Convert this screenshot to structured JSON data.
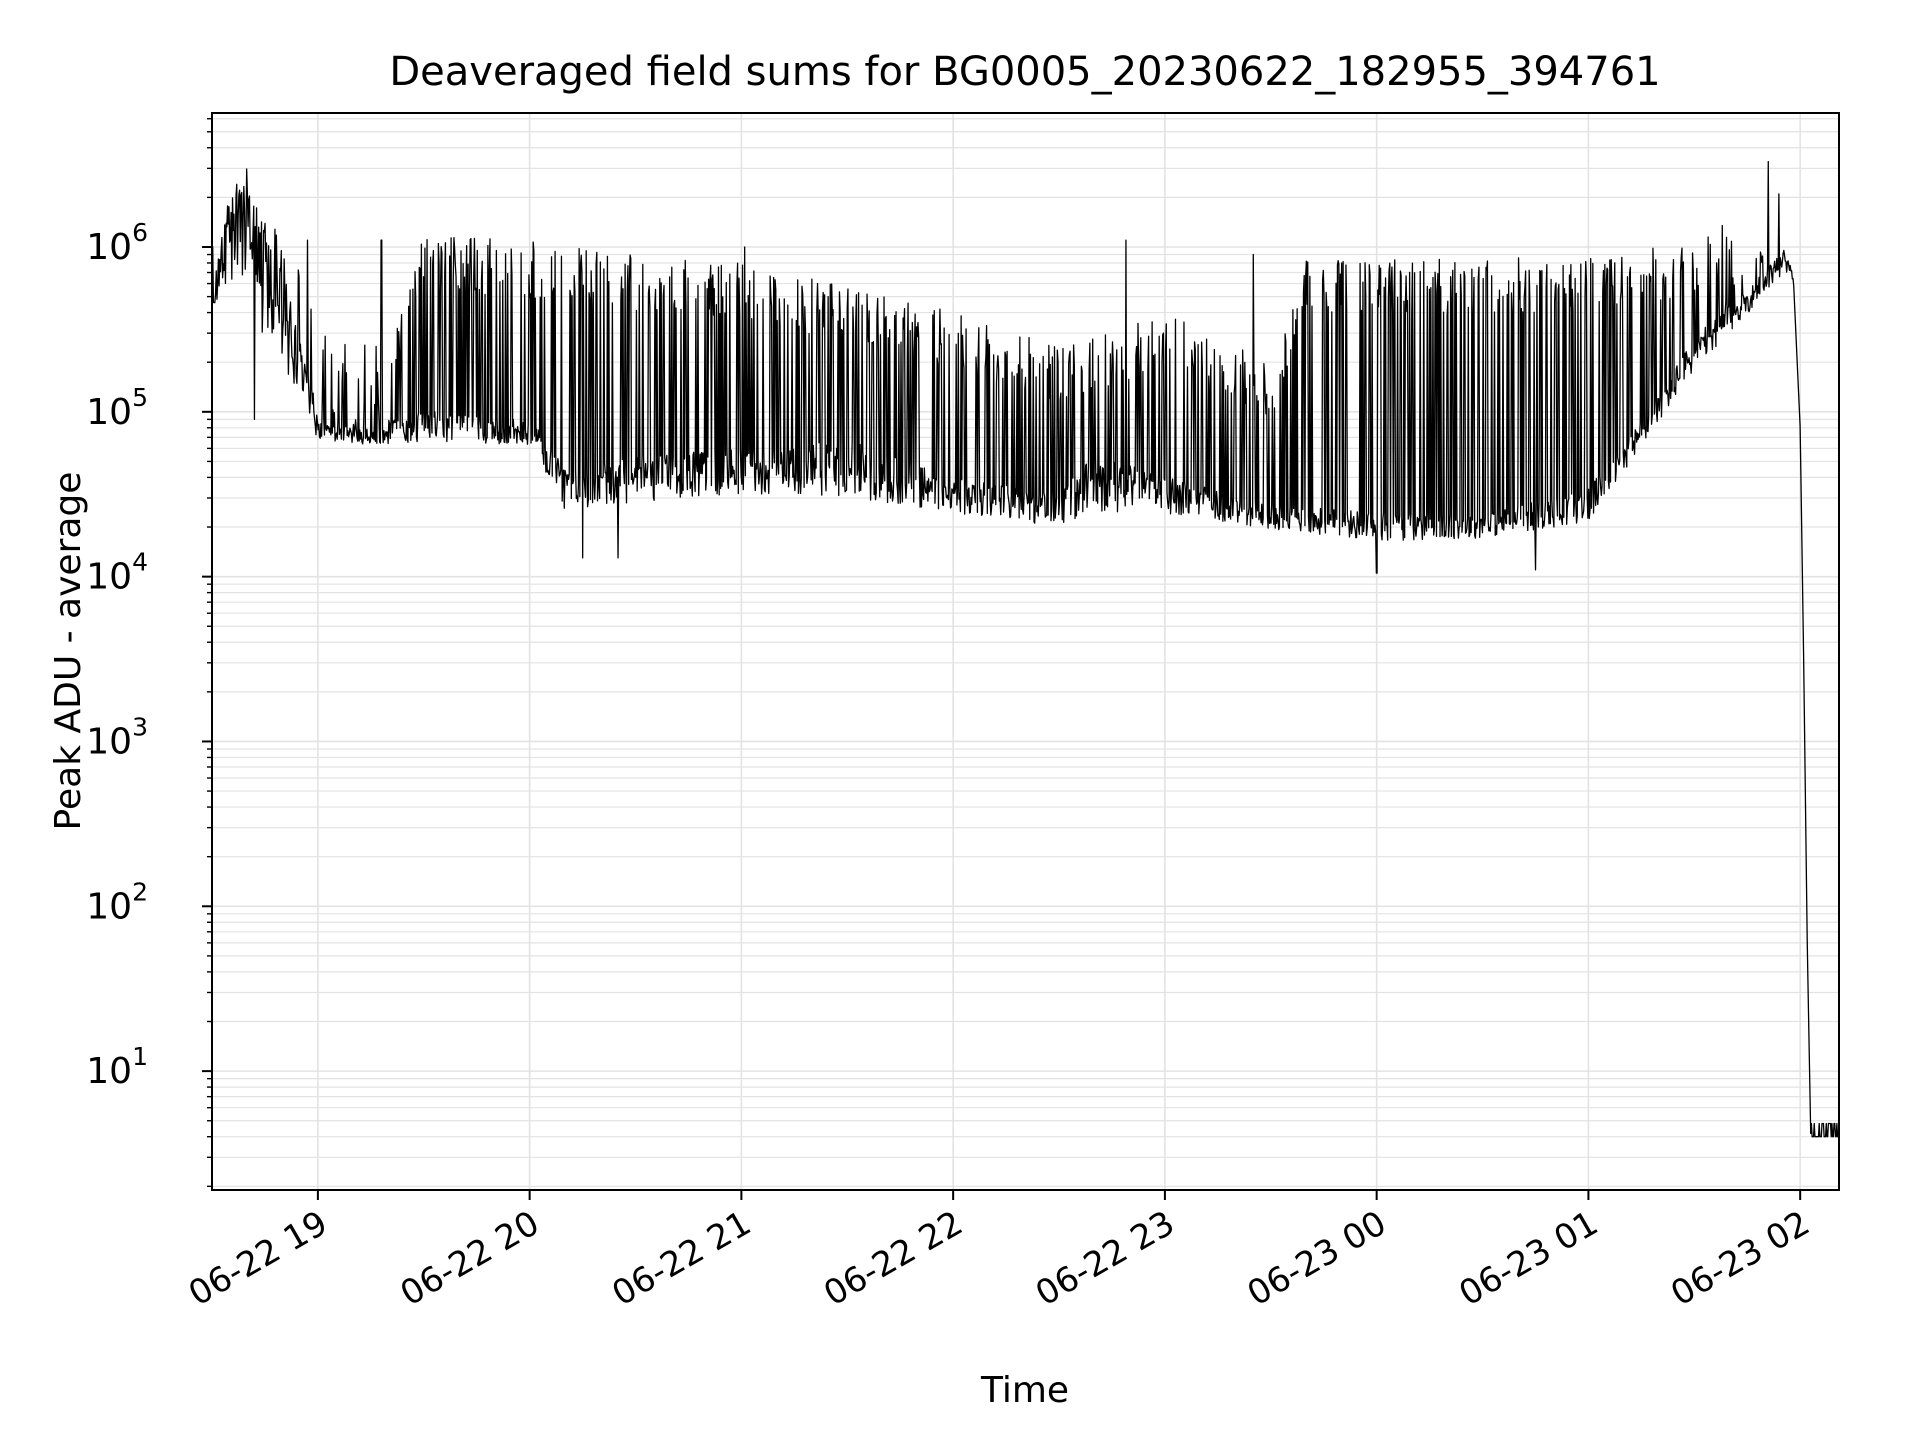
{
  "chart_data": {
    "type": "line",
    "title": "Deaveraged field sums for BG0005_20230622_182955_394761",
    "xlabel": "Time",
    "ylabel": "Peak ADU - average",
    "yscale": "log",
    "xlim": [
      "06-22 18:30",
      "06-23 02:11"
    ],
    "ylim": [
      1.9,
      6500000
    ],
    "x_ticks": [
      "06-22 19",
      "06-22 20",
      "06-22 21",
      "06-22 22",
      "06-22 23",
      "06-23 00",
      "06-23 01",
      "06-23 02"
    ],
    "y_ticks": [
      {
        "value": 10,
        "base": "10",
        "exp": "1"
      },
      {
        "value": 100,
        "base": "10",
        "exp": "2"
      },
      {
        "value": 1000,
        "base": "10",
        "exp": "3"
      },
      {
        "value": 10000,
        "base": "10",
        "exp": "4"
      },
      {
        "value": 100000,
        "base": "10",
        "exp": "5"
      },
      {
        "value": 1000000,
        "base": "10",
        "exp": "6"
      }
    ],
    "grid": "major and minor",
    "line_color": "#000000",
    "grid_color": "#e3e3e3",
    "series": [
      {
        "baseline": [
          [
            "06-22 18:30",
            500000
          ],
          [
            "06-22 18:35",
            1500000
          ],
          [
            "06-22 18:40",
            1800000
          ],
          [
            "06-22 18:45",
            800000
          ],
          [
            "06-22 18:50",
            500000
          ],
          [
            "06-22 18:55",
            250000
          ],
          [
            "06-22 19:00",
            85000
          ],
          [
            "06-22 19:15",
            75000
          ],
          [
            "06-22 19:30",
            90000
          ],
          [
            "06-22 19:45",
            85000
          ],
          [
            "06-22 20:00",
            80000
          ],
          [
            "06-22 20:05",
            60000
          ],
          [
            "06-22 20:10",
            40000
          ],
          [
            "06-22 20:30",
            45000
          ],
          [
            "06-22 21:00",
            50000
          ],
          [
            "06-22 21:30",
            55000
          ],
          [
            "06-22 22:00",
            35000
          ],
          [
            "06-22 22:30",
            28000
          ],
          [
            "06-22 22:40",
            45000
          ],
          [
            "06-22 23:00",
            35000
          ],
          [
            "06-22 23:30",
            25000
          ],
          [
            "06-23 00:00",
            22000
          ],
          [
            "06-23 00:30",
            22000
          ],
          [
            "06-23 01:00",
            30000
          ],
          [
            "06-23 01:15",
            80000
          ],
          [
            "06-23 01:30",
            250000
          ],
          [
            "06-23 01:45",
            500000
          ],
          [
            "06-23 01:55",
            900000
          ],
          [
            "06-23 01:58",
            700000
          ],
          [
            "06-23 02:00",
            80000
          ],
          [
            "06-23 02:01",
            3000
          ],
          [
            "06-23 02:02",
            60
          ],
          [
            "06-23 02:03",
            4
          ],
          [
            "06-23 02:11",
            4
          ]
        ],
        "upper": [
          [
            "06-22 18:30",
            1000000
          ],
          [
            "06-22 18:40",
            2200000
          ],
          [
            "06-22 18:55",
            800000
          ],
          [
            "06-22 19:00",
            300000
          ],
          [
            "06-22 19:20",
            250000
          ],
          [
            "06-22 19:30",
            1200000
          ],
          [
            "06-22 20:00",
            1100000
          ],
          [
            "06-22 20:30",
            900000
          ],
          [
            "06-22 21:00",
            800000
          ],
          [
            "06-22 21:30",
            600000
          ],
          [
            "06-22 22:00",
            400000
          ],
          [
            "06-22 22:30",
            250000
          ],
          [
            "06-22 23:00",
            400000
          ],
          [
            "06-22 23:30",
            200000
          ],
          [
            "06-22 23:40",
            850000
          ],
          [
            "06-23 00:30",
            850000
          ],
          [
            "06-23 01:00",
            900000
          ],
          [
            "06-23 01:30",
            1100000
          ],
          [
            "06-23 01:50",
            1500000
          ],
          [
            "06-23 02:00",
            1000000
          ]
        ],
        "lower": [
          [
            "06-22 18:30",
            400000
          ],
          [
            "06-22 19:00",
            60000
          ],
          [
            "06-22 19:30",
            55000
          ],
          [
            "06-22 20:00",
            55000
          ],
          [
            "06-22 20:10",
            20000
          ],
          [
            "06-22 21:00",
            25000
          ],
          [
            "06-22 22:00",
            20000
          ],
          [
            "06-22 22:30",
            17000
          ],
          [
            "06-22 23:00",
            20000
          ],
          [
            "06-22 23:30",
            17000
          ],
          [
            "06-23 00:00",
            14000
          ],
          [
            "06-23 00:30",
            15000
          ],
          [
            "06-23 01:00",
            18000
          ],
          [
            "06-23 01:30",
            150000
          ],
          [
            "06-23 01:55",
            600000
          ]
        ],
        "peaks": [
          [
            "06-22 18:37",
            2400000
          ],
          [
            "06-22 18:57",
            1100000
          ],
          [
            "06-22 19:18",
            1100000
          ],
          [
            "06-22 21:01",
            1000000
          ],
          [
            "06-22 22:49",
            1100000
          ],
          [
            "06-22 23:25",
            900000
          ],
          [
            "06-23 01:38",
            1350000
          ],
          [
            "06-23 01:51",
            3300000
          ],
          [
            "06-23 01:54",
            2100000
          ]
        ],
        "dips": [
          [
            "06-22 18:42",
            90000
          ],
          [
            "06-22 20:15",
            13000
          ],
          [
            "06-22 20:25",
            13000
          ],
          [
            "06-23 00:00",
            10500
          ],
          [
            "06-23 00:45",
            11000
          ]
        ]
      }
    ]
  }
}
